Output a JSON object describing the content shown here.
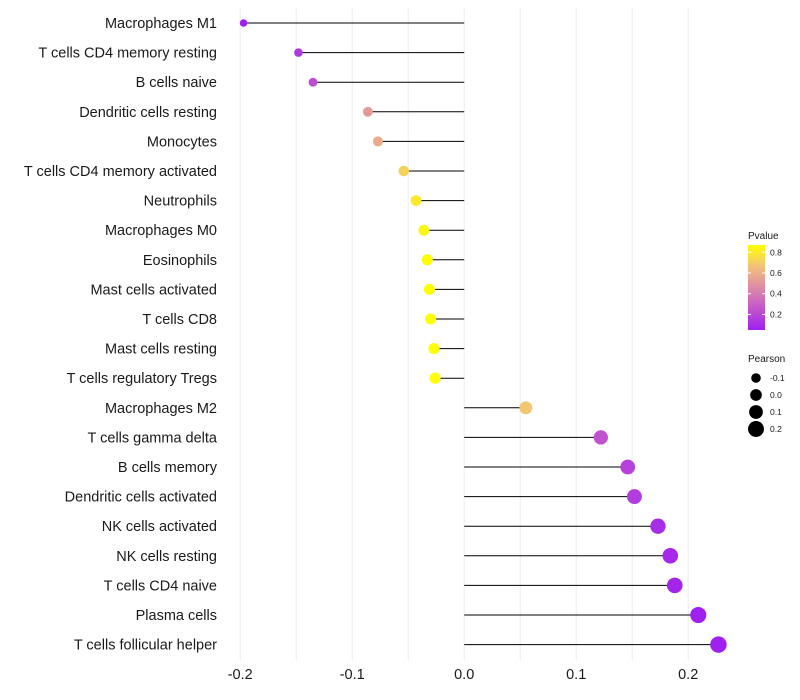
{
  "chart_data": {
    "type": "lollipop",
    "categories": [
      "Macrophages M1",
      "T cells CD4 memory resting",
      "B cells naive",
      "Dendritic cells resting",
      "Monocytes",
      "T cells CD4 memory activated",
      "Neutrophils",
      "Macrophages M0",
      "Eosinophils",
      "Mast cells activated",
      "T cells CD8",
      "Mast cells resting",
      "T cells regulatory  Tregs ",
      "Macrophages M2",
      "T cells gamma delta",
      "B cells memory",
      "Dendritic cells activated",
      "NK cells activated",
      "NK cells resting",
      "T cells CD4 naive",
      "Plasma cells",
      "T cells follicular helper"
    ],
    "pearson": [
      -0.197,
      -0.148,
      -0.135,
      -0.086,
      -0.077,
      -0.054,
      -0.043,
      -0.036,
      -0.033,
      -0.031,
      -0.03,
      -0.027,
      -0.026,
      0.055,
      0.122,
      0.146,
      0.152,
      0.173,
      0.184,
      0.188,
      0.209,
      0.227
    ],
    "pvalue": [
      0.05,
      0.15,
      0.22,
      0.52,
      0.58,
      0.72,
      0.8,
      0.84,
      0.86,
      0.87,
      0.87,
      0.88,
      0.88,
      0.68,
      0.24,
      0.18,
      0.16,
      0.1,
      0.08,
      0.07,
      0.04,
      0.02
    ],
    "xlim": [
      -0.21,
      0.24
    ],
    "x_ticks": [
      -0.2,
      -0.1,
      0.0,
      0.1,
      0.2
    ],
    "x_tick_labels": [
      "-0.2",
      "-0.1",
      "0.0",
      "0.1",
      "0.2"
    ],
    "baseline": 0.0,
    "grid": true,
    "title": "",
    "xlabel": "",
    "ylabel": "",
    "legend": {
      "color": {
        "title": "Pvalue",
        "range": [
          0.05,
          0.87
        ],
        "ticks": [
          0.8,
          0.6,
          0.4,
          0.2
        ],
        "tick_labels": [
          "0.8",
          "0.6",
          "0.4",
          "0.2"
        ],
        "low_color": "#a020f0",
        "high_color": "#ffff00"
      },
      "size": {
        "title": "Pearson",
        "values": [
          -0.1,
          0.0,
          0.1,
          0.2
        ],
        "labels": [
          "-0.1",
          "0.0",
          "0.1",
          "0.2"
        ]
      },
      "placement": "right"
    },
    "line_color": "#000000",
    "grid_color": "#ececec"
  }
}
